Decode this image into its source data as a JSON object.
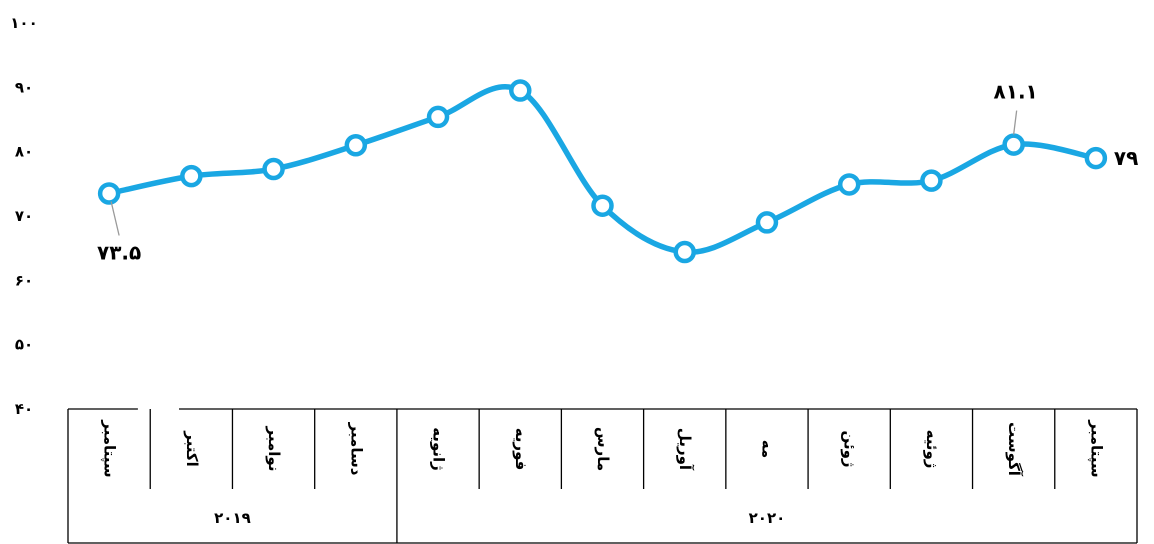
{
  "chart_data": {
    "type": "line",
    "title": "",
    "xlabel": "",
    "ylabel": "",
    "ylim": [
      40,
      100
    ],
    "yticks": [
      "۴۰",
      "۵۰",
      "۶۰",
      "۷۰",
      "۸۰",
      "۹۰",
      "۱۰۰"
    ],
    "ytick_values": [
      40,
      50,
      60,
      70,
      80,
      90,
      100
    ],
    "categories": [
      "سپتامبر",
      "اکتبر",
      "نوامبر",
      "دسامبر",
      "ژانویه",
      "فوریه",
      "مارس",
      "آوریل",
      "مه",
      "ژوئن",
      "ژوئیه",
      "آگوست",
      "سپتامبر"
    ],
    "year_groups": [
      {
        "label": "۲۰۱۹",
        "start": 0,
        "count": 4
      },
      {
        "label": "۲۰۲۰",
        "start": 4,
        "count": 9
      }
    ],
    "series": [
      {
        "values": [
          73.5,
          76.2,
          77.3,
          81.0,
          85.4,
          89.5,
          71.6,
          64.4,
          69.0,
          74.9,
          75.5,
          81.1,
          79.0
        ],
        "color": "#1AA7E3"
      }
    ],
    "data_labels": [
      {
        "index": 0,
        "text": "۷۳.۵"
      },
      {
        "index": 11,
        "text": "۸۱.۱"
      },
      {
        "index": 12,
        "text": "۷۹"
      }
    ],
    "grid": false,
    "legend": "none"
  }
}
